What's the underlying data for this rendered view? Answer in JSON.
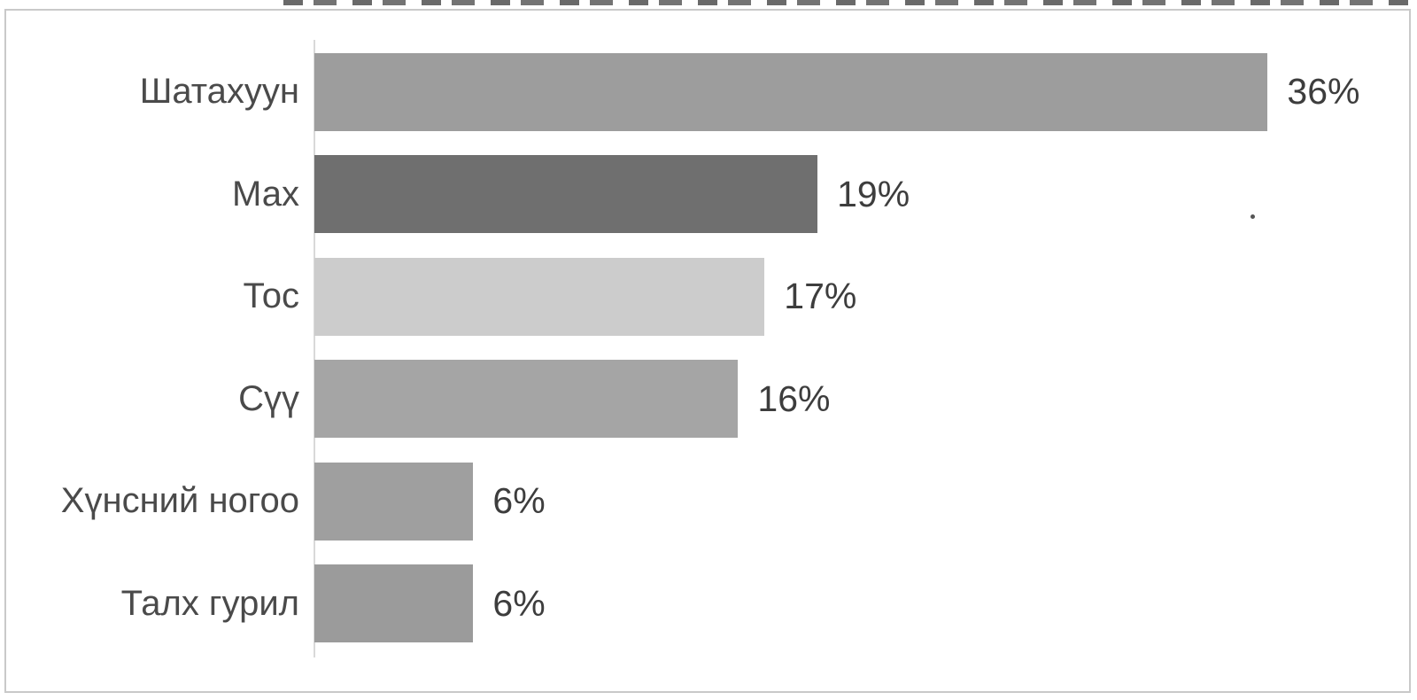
{
  "chart_data": {
    "type": "bar",
    "orientation": "horizontal",
    "title": "",
    "xlabel": "",
    "ylabel": "",
    "categories": [
      "Шатахуун",
      "Мах",
      "Тос",
      "Сүү",
      "Хүнсний ногоо",
      "Талх гурил"
    ],
    "values": [
      36,
      19,
      17,
      16,
      6,
      6
    ],
    "value_labels": [
      "36%",
      "19%",
      "17%",
      "16%",
      "6%",
      "6%"
    ],
    "bar_colors": [
      "#9d9d9d",
      "#6f6f6f",
      "#cccccc",
      "#a5a5a5",
      "#9f9f9f",
      "#9b9b9b"
    ],
    "xlim": [
      0,
      40
    ],
    "grid": false,
    "legend": false,
    "value_label_position": "end-of-bar",
    "axis_color": "#d9d9d9",
    "label_color": "#4a4a4a",
    "value_color": "#3d3d3d",
    "background": "#ffffff",
    "frame_border_color": "#c9c9c9"
  }
}
